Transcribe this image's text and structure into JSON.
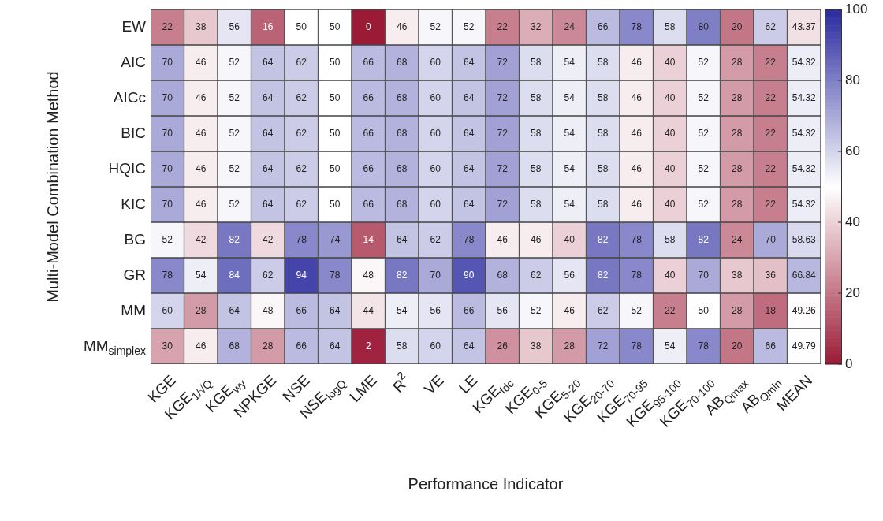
{
  "chart_data": {
    "type": "heatmap",
    "xlabel": "Performance Indicator",
    "ylabel": "Multi-Model Combination Method",
    "categories": [
      "KGE",
      "KGE$_{1/√Q}$",
      "KGE$_{wy}$",
      "NPKGE",
      "NSE",
      "NSE$_{logQ}$",
      "LME",
      "R$^{2}$",
      "VE",
      "LE",
      "KGE$_{fdc}$",
      "KGE$_{0-5}$",
      "KGE$_{5-20}$",
      "KGE$_{20-70}$",
      "KGE$_{70-95}$",
      "KGE$_{95-100}$",
      "KGE$_{70-100}$",
      "AB$_{Qmax}$",
      "AB$_{Qmin}$",
      "MEAN"
    ],
    "y_categories": [
      "EW",
      "AIC",
      "AICc",
      "BIC",
      "HQIC",
      "KIC",
      "BG",
      "GR",
      "MM",
      "MM$_{simplex}$"
    ],
    "cells": [
      [
        22,
        38,
        56,
        16,
        50,
        50,
        0,
        46,
        52,
        52,
        22,
        32,
        24,
        66,
        78,
        58,
        80,
        20,
        62,
        43.37
      ],
      [
        70,
        46,
        52,
        64,
        62,
        50,
        66,
        68,
        60,
        64,
        72,
        58,
        54,
        58,
        46,
        40,
        52,
        28,
        22,
        54.32
      ],
      [
        70,
        46,
        52,
        64,
        62,
        50,
        66,
        68,
        60,
        64,
        72,
        58,
        54,
        58,
        46,
        40,
        52,
        28,
        22,
        54.32
      ],
      [
        70,
        46,
        52,
        64,
        62,
        50,
        66,
        68,
        60,
        64,
        72,
        58,
        54,
        58,
        46,
        40,
        52,
        28,
        22,
        54.32
      ],
      [
        70,
        46,
        52,
        64,
        62,
        50,
        66,
        68,
        60,
        64,
        72,
        58,
        54,
        58,
        46,
        40,
        52,
        28,
        22,
        54.32
      ],
      [
        70,
        46,
        52,
        64,
        62,
        50,
        66,
        68,
        60,
        64,
        72,
        58,
        54,
        58,
        46,
        40,
        52,
        28,
        22,
        54.32
      ],
      [
        52,
        42,
        82,
        42,
        78,
        74,
        14,
        64,
        62,
        78,
        46,
        46,
        40,
        82,
        78,
        58,
        82,
        24,
        70,
        58.63
      ],
      [
        78,
        54,
        84,
        62,
        94,
        78,
        48,
        82,
        70,
        90,
        68,
        62,
        56,
        82,
        78,
        40,
        70,
        38,
        36,
        66.84
      ],
      [
        60,
        28,
        64,
        48,
        66,
        64,
        44,
        54,
        56,
        66,
        56,
        52,
        46,
        62,
        52,
        22,
        50,
        28,
        18,
        49.26
      ],
      [
        30,
        46,
        68,
        28,
        66,
        64,
        2,
        58,
        60,
        64,
        26,
        38,
        28,
        72,
        78,
        54,
        78,
        20,
        66,
        49.79
      ]
    ],
    "clim": [
      0,
      100
    ],
    "cticks": [
      0,
      20,
      40,
      60,
      80,
      100
    ],
    "data_labels": true
  }
}
